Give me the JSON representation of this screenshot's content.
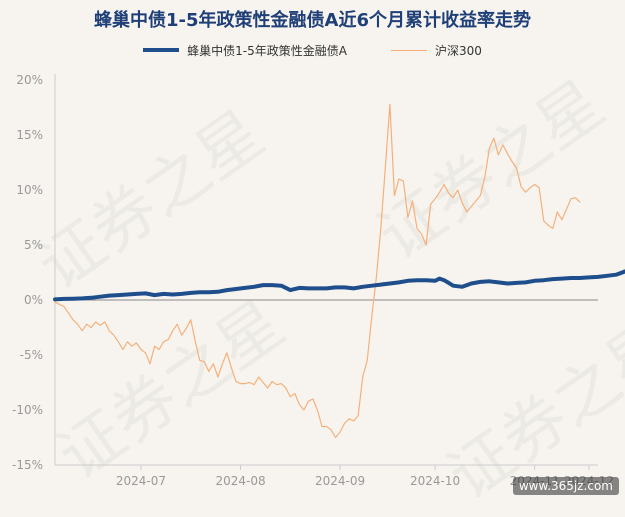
{
  "title": "蜂巢中债1-5年政策性金融债A近6个月累计收益率走势",
  "watermark": "证券之星",
  "site_mark": "www.365jz.com",
  "chart_data": {
    "type": "line",
    "title": "蜂巢中债1-5年政策性金融债A近6个月累计收益率走势",
    "xlabel": "",
    "ylabel": "",
    "ylim": [
      -15,
      20
    ],
    "x_range": [
      0,
      120
    ],
    "yticks": [
      {
        "value": 20,
        "label": "20%"
      },
      {
        "value": 15,
        "label": "15%"
      },
      {
        "value": 10,
        "label": "10%"
      },
      {
        "value": 5,
        "label": "5%"
      },
      {
        "value": 0,
        "label": "0%"
      },
      {
        "value": -5,
        "label": "-5%"
      },
      {
        "value": -10,
        "label": "-10%"
      },
      {
        "value": -15,
        "label": "-15%"
      }
    ],
    "xticks": [
      {
        "value": 19,
        "label": "2024-07"
      },
      {
        "value": 41,
        "label": "2024-08"
      },
      {
        "value": 63,
        "label": "2024-09"
      },
      {
        "value": 84,
        "label": "2024-10"
      },
      {
        "value": 106,
        "label": "2024-11"
      },
      {
        "value": 118,
        "label": "2024-12"
      }
    ],
    "grid": false,
    "legend_position": "top-center",
    "series": [
      {
        "name": "蜂巢中债1-5年政策性金融债A",
        "color": "#1f4e8c",
        "line_width": "thick",
        "values": [
          [
            0,
            0.05
          ],
          [
            2,
            0.1
          ],
          [
            4,
            0.12
          ],
          [
            6,
            0.15
          ],
          [
            8,
            0.2
          ],
          [
            10,
            0.3
          ],
          [
            12,
            0.4
          ],
          [
            14,
            0.45
          ],
          [
            16,
            0.5
          ],
          [
            18,
            0.55
          ],
          [
            20,
            0.6
          ],
          [
            22,
            0.45
          ],
          [
            24,
            0.55
          ],
          [
            26,
            0.5
          ],
          [
            28,
            0.55
          ],
          [
            30,
            0.65
          ],
          [
            32,
            0.7
          ],
          [
            34,
            0.7
          ],
          [
            36,
            0.75
          ],
          [
            38,
            0.9
          ],
          [
            40,
            1.0
          ],
          [
            42,
            1.1
          ],
          [
            44,
            1.2
          ],
          [
            46,
            1.35
          ],
          [
            48,
            1.35
          ],
          [
            50,
            1.3
          ],
          [
            52,
            0.9
          ],
          [
            54,
            1.1
          ],
          [
            56,
            1.05
          ],
          [
            58,
            1.05
          ],
          [
            60,
            1.05
          ],
          [
            62,
            1.15
          ],
          [
            64,
            1.15
          ],
          [
            66,
            1.05
          ],
          [
            68,
            1.2
          ],
          [
            70,
            1.3
          ],
          [
            72,
            1.4
          ],
          [
            74,
            1.5
          ],
          [
            76,
            1.6
          ],
          [
            78,
            1.75
          ],
          [
            80,
            1.8
          ],
          [
            82,
            1.8
          ],
          [
            84,
            1.75
          ],
          [
            85,
            1.95
          ],
          [
            86,
            1.8
          ],
          [
            87,
            1.55
          ],
          [
            88,
            1.3
          ],
          [
            90,
            1.2
          ],
          [
            92,
            1.5
          ],
          [
            94,
            1.65
          ],
          [
            96,
            1.7
          ],
          [
            98,
            1.6
          ],
          [
            100,
            1.5
          ],
          [
            102,
            1.55
          ],
          [
            104,
            1.6
          ],
          [
            106,
            1.75
          ],
          [
            108,
            1.8
          ],
          [
            110,
            1.9
          ],
          [
            112,
            1.95
          ],
          [
            114,
            2.0
          ],
          [
            116,
            2.0
          ],
          [
            118,
            2.05
          ],
          [
            120,
            2.1
          ],
          [
            122,
            2.2
          ],
          [
            124,
            2.3
          ],
          [
            126,
            2.6
          ],
          [
            128,
            2.65
          ]
        ]
      },
      {
        "name": "沪深300",
        "color": "#f5b07a",
        "line_width": "thin",
        "values": [
          [
            0,
            -0.2
          ],
          [
            2,
            -0.6
          ],
          [
            3,
            -1.2
          ],
          [
            4,
            -1.8
          ],
          [
            5,
            -2.2
          ],
          [
            6,
            -2.8
          ],
          [
            7,
            -2.2
          ],
          [
            8,
            -2.5
          ],
          [
            9,
            -2.0
          ],
          [
            10,
            -2.3
          ],
          [
            11,
            -2.0
          ],
          [
            12,
            -2.8
          ],
          [
            13,
            -3.2
          ],
          [
            14,
            -3.8
          ],
          [
            15,
            -4.5
          ],
          [
            16,
            -3.8
          ],
          [
            17,
            -4.2
          ],
          [
            18,
            -3.9
          ],
          [
            19,
            -4.5
          ],
          [
            20,
            -4.8
          ],
          [
            21,
            -5.8
          ],
          [
            22,
            -4.2
          ],
          [
            23,
            -4.5
          ],
          [
            24,
            -3.8
          ],
          [
            25,
            -3.6
          ],
          [
            26,
            -2.8
          ],
          [
            27,
            -2.2
          ],
          [
            28,
            -3.2
          ],
          [
            29,
            -2.6
          ],
          [
            30,
            -1.8
          ],
          [
            31,
            -3.8
          ],
          [
            32,
            -5.5
          ],
          [
            33,
            -5.6
          ],
          [
            34,
            -6.5
          ],
          [
            35,
            -5.8
          ],
          [
            36,
            -7.0
          ],
          [
            37,
            -5.8
          ],
          [
            38,
            -4.8
          ],
          [
            39,
            -6.2
          ],
          [
            40,
            -7.4
          ],
          [
            41,
            -7.6
          ],
          [
            42,
            -7.6
          ],
          [
            43,
            -7.5
          ],
          [
            44,
            -7.7
          ],
          [
            45,
            -7.0
          ],
          [
            46,
            -7.5
          ],
          [
            47,
            -8.0
          ],
          [
            48,
            -7.4
          ],
          [
            49,
            -7.7
          ],
          [
            50,
            -7.6
          ],
          [
            51,
            -8.0
          ],
          [
            52,
            -8.8
          ],
          [
            53,
            -8.5
          ],
          [
            54,
            -9.5
          ],
          [
            55,
            -10.0
          ],
          [
            56,
            -9.2
          ],
          [
            57,
            -9.0
          ],
          [
            58,
            -10.0
          ],
          [
            59,
            -11.5
          ],
          [
            60,
            -11.5
          ],
          [
            61,
            -11.8
          ],
          [
            62,
            -12.5
          ],
          [
            63,
            -12.0
          ],
          [
            64,
            -11.2
          ],
          [
            65,
            -10.8
          ],
          [
            66,
            -11.0
          ],
          [
            67,
            -10.5
          ],
          [
            68,
            -7.0
          ],
          [
            69,
            -5.5
          ],
          [
            70,
            -1.5
          ],
          [
            71,
            2.0
          ],
          [
            72,
            6.5
          ],
          [
            73,
            12.0
          ],
          [
            74,
            17.8
          ],
          [
            75,
            9.5
          ],
          [
            76,
            11.0
          ],
          [
            77,
            10.8
          ],
          [
            78,
            7.5
          ],
          [
            79,
            9.0
          ],
          [
            80,
            6.5
          ],
          [
            81,
            6.0
          ],
          [
            82,
            5.0
          ],
          [
            83,
            8.7
          ],
          [
            84,
            9.2
          ],
          [
            85,
            9.8
          ],
          [
            86,
            10.5
          ],
          [
            87,
            9.7
          ],
          [
            88,
            9.3
          ],
          [
            89,
            10.0
          ],
          [
            90,
            8.8
          ],
          [
            91,
            8.0
          ],
          [
            92,
            8.5
          ],
          [
            93,
            9.0
          ],
          [
            94,
            9.5
          ],
          [
            95,
            11.2
          ],
          [
            96,
            13.8
          ],
          [
            97,
            14.7
          ],
          [
            98,
            13.2
          ],
          [
            99,
            14.1
          ],
          [
            100,
            13.3
          ],
          [
            101,
            12.6
          ],
          [
            102,
            12.0
          ],
          [
            103,
            10.3
          ],
          [
            104,
            9.8
          ],
          [
            105,
            10.2
          ],
          [
            106,
            10.5
          ],
          [
            107,
            10.2
          ],
          [
            108,
            7.2
          ],
          [
            109,
            6.8
          ],
          [
            110,
            6.5
          ],
          [
            111,
            8.0
          ],
          [
            112,
            7.3
          ],
          [
            113,
            8.2
          ],
          [
            114,
            9.2
          ],
          [
            115,
            9.3
          ],
          [
            116,
            8.9
          ]
        ]
      }
    ]
  }
}
